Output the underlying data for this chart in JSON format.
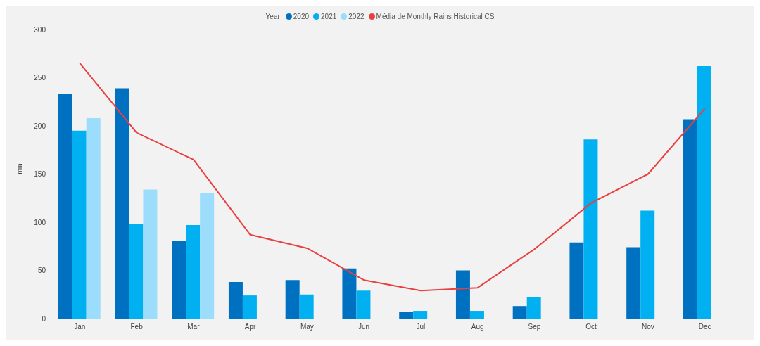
{
  "chart_data": {
    "type": "bar",
    "ylabel": "mm",
    "legend_title": "Year",
    "legend": "top",
    "grid": false,
    "marker": "none",
    "categories": [
      "Jan",
      "Feb",
      "Mar",
      "Apr",
      "May",
      "Jun",
      "Jul",
      "Aug",
      "Sep",
      "Oct",
      "Nov",
      "Dec"
    ],
    "ylim": [
      0,
      300
    ],
    "yticks": [
      0,
      50,
      100,
      150,
      200,
      250,
      300
    ],
    "series": [
      {
        "name": "2020",
        "color": "#0070c0",
        "values": [
          233,
          239,
          81,
          38,
          40,
          52,
          7,
          50,
          13,
          79,
          74,
          207
        ]
      },
      {
        "name": "2021",
        "color": "#00b0f0",
        "values": [
          195,
          98,
          97,
          24,
          25,
          29,
          8,
          8,
          22,
          186,
          112,
          262
        ]
      },
      {
        "name": "2022",
        "color": "#9bddfa",
        "values": [
          208,
          134,
          130,
          null,
          null,
          null,
          null,
          null,
          null,
          null,
          null,
          null
        ]
      },
      {
        "name": "Média de Monthly Rains Historical CS",
        "type": "line",
        "color": "#e8403f",
        "values": [
          265,
          193,
          165,
          87,
          73,
          40,
          29,
          32,
          72,
          120,
          150,
          218
        ]
      }
    ]
  }
}
